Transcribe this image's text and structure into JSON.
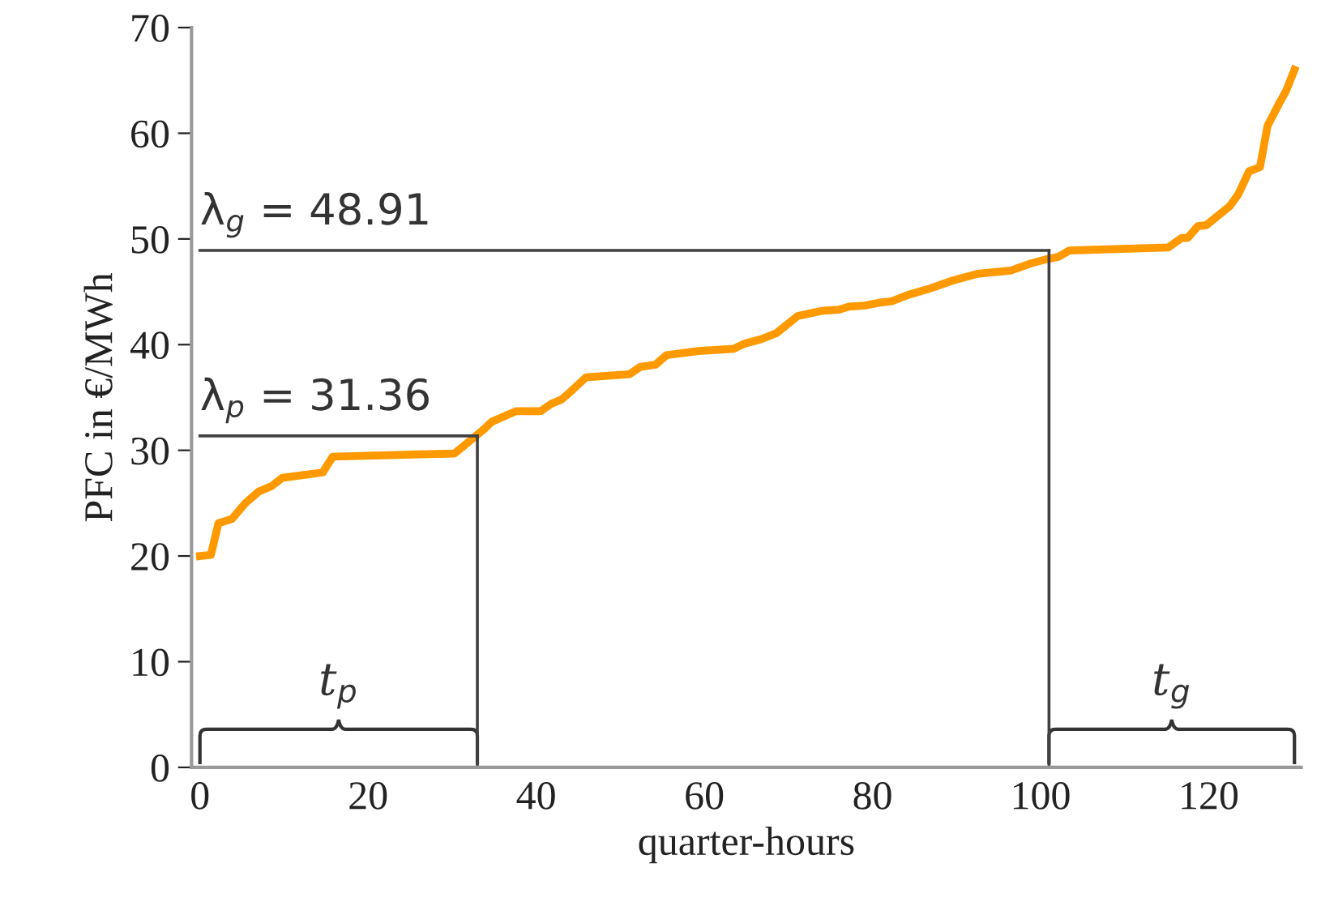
{
  "chart_data": {
    "type": "line",
    "xlabel": "quarter-hours",
    "ylabel": "PFC in €/MWh",
    "x": [
      0,
      1.3,
      2.2,
      3.8,
      5.4,
      7,
      8.5,
      9.8,
      14.6,
      15.8,
      30.3,
      33.8,
      34.7,
      37.6,
      40.5,
      41.8,
      43,
      44.3,
      45.9,
      51.1,
      52.4,
      54.2,
      55.5,
      59.3,
      63.5,
      64.8,
      66.7,
      68.6,
      71.1,
      74,
      76,
      77.2,
      79.1,
      81.1,
      82.3,
      84.2,
      86.8,
      89.7,
      92.5,
      96.4,
      98.9,
      100.8,
      102.1,
      103.4,
      107.2,
      115.2,
      116.8,
      117.5,
      118.7,
      119.7,
      122.5,
      123.5,
      124.8,
      126.1,
      127,
      128.3,
      129.2,
      130.2
    ],
    "series": [
      {
        "color": "#ff9900",
        "values": [
          20.0,
          20.1,
          23.1,
          23.5,
          25.0,
          26.1,
          26.6,
          27.4,
          27.9,
          29.4,
          29.7,
          32.0,
          32.7,
          33.7,
          33.7,
          34.4,
          34.8,
          35.7,
          36.9,
          37.2,
          37.9,
          38.1,
          39.0,
          39.4,
          39.6,
          40.1,
          40.5,
          41.1,
          42.7,
          43.2,
          43.3,
          43.6,
          43.7,
          44.0,
          44.1,
          44.7,
          45.3,
          46.1,
          46.7,
          47.0,
          47.7,
          48.1,
          48.3,
          48.9,
          49.0,
          49.2,
          50.1,
          50.1,
          51.2,
          51.3,
          53.1,
          54.2,
          56.4,
          56.8,
          60.7,
          62.7,
          64.0,
          66.0
        ]
      }
    ],
    "xlim": [
      -1,
      131
    ],
    "xticks": [
      0,
      20,
      40,
      60,
      80,
      100,
      120
    ],
    "ylim": [
      0,
      70
    ],
    "yticks": [
      0,
      10,
      20,
      30,
      40,
      50,
      60,
      70
    ],
    "grid": false,
    "legend": false,
    "marker": "none",
    "line_style": "solid",
    "ref_lines": [
      {
        "axis": "y",
        "value": 31.36,
        "label": "λ$_{p}$ = 31.36",
        "color": "#404040"
      },
      {
        "axis": "y",
        "value": 48.91,
        "label": "λ$_{g}$ = 48.91",
        "color": "#404040"
      },
      {
        "axis": "x",
        "value": 33,
        "color": "#404040"
      },
      {
        "axis": "x",
        "value": 101,
        "color": "#404040"
      }
    ],
    "annotations": [
      "t$_{p}$",
      "t$_{g}$"
    ]
  }
}
